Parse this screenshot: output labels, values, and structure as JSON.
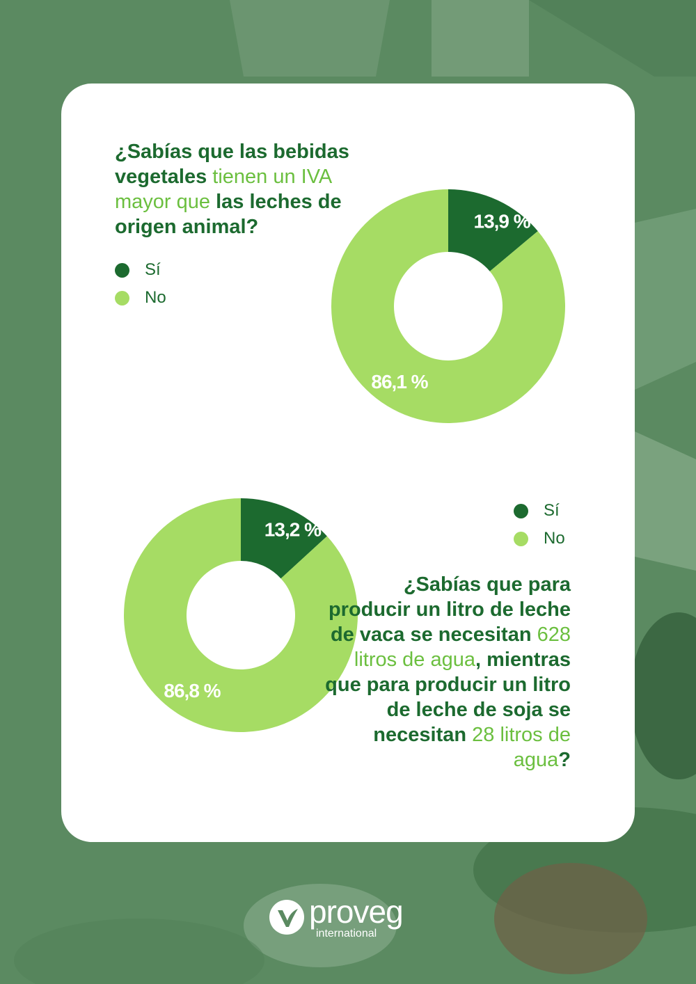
{
  "colors": {
    "dark_green": "#1c6a2f",
    "light_green": "#a6dc64",
    "accent_text": "#6bbf3f",
    "background": "#5b8a61"
  },
  "question1": {
    "parts": [
      {
        "text": "¿Sabías que las bebidas vegetales",
        "emphasis": true
      },
      {
        "text": " tienen un IVA mayor que ",
        "emphasis": false
      },
      {
        "text": "las leches de origen animal?",
        "emphasis": true
      }
    ]
  },
  "question2": {
    "parts": [
      {
        "text": "¿Sabías que para producir un litro de leche de vaca se necesitan ",
        "emphasis": true
      },
      {
        "text": "628 litros de agua",
        "emphasis": false
      },
      {
        "text": ", mientras que para producir un litro de leche de soja se necesitan ",
        "emphasis": true
      },
      {
        "text": "28 litros de agua",
        "emphasis": false
      },
      {
        "text": "?",
        "emphasis": true
      }
    ]
  },
  "chart_data": [
    {
      "type": "pie",
      "categories": [
        "Sí",
        "No"
      ],
      "values": [
        13.9,
        86.1
      ],
      "labels": [
        "13,9 %",
        "86,1 %"
      ],
      "colors": [
        "#1c6a2f",
        "#a6dc64"
      ],
      "legend": "top-left"
    },
    {
      "type": "pie",
      "categories": [
        "Sí",
        "No"
      ],
      "values": [
        13.2,
        86.8
      ],
      "labels": [
        "13,2 %",
        "86,8 %"
      ],
      "colors": [
        "#1c6a2f",
        "#a6dc64"
      ],
      "legend": "top-right"
    }
  ],
  "logo": {
    "name": "proveg",
    "subtitle": "international",
    "icon": "leaf-v-icon"
  }
}
